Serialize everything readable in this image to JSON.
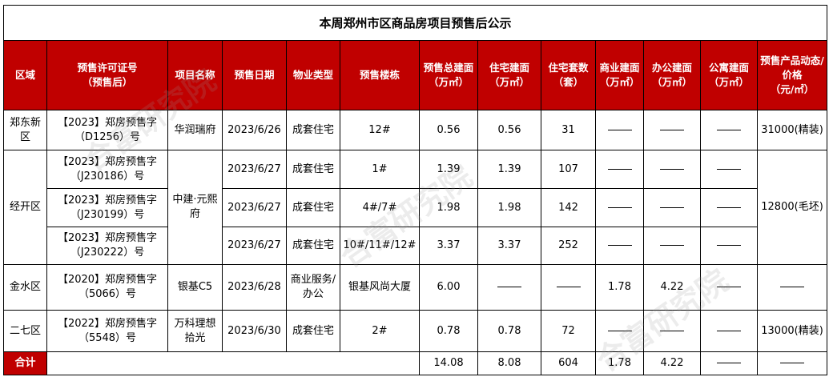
{
  "title": "本周郑州市区商品房项目预售后公示",
  "headers": [
    "区域",
    "预售许可证号\n（预售后）",
    "项目名称",
    "预售日期",
    "物业类型",
    "预售楼栋",
    "预售总建面\n（万㎡）",
    "住宅建面\n（万㎡）",
    "住宅套数\n（套）",
    "商业建面\n（万㎡）",
    "办公建面\n（万㎡）",
    "公寓建面\n（万㎡）",
    "预售产品动态/价格\n（元/㎡）"
  ],
  "rows": [
    {
      "district": "郑东新区",
      "permit": "【2023】郑房预售字（D1256）号",
      "project": "华润瑞府",
      "date": "2023/6/26",
      "type": "成套住宅",
      "building": "12#",
      "total": "0.56",
      "res_area": "0.56",
      "units": "31",
      "com": "—",
      "office": "—",
      "apt": "—",
      "price": "31000(精装)"
    },
    {
      "district": "经开区",
      "permit": "【2023】郑房预售字（J230186）号",
      "project": "中建·元熙府",
      "date": "2023/6/27",
      "type": "成套住宅",
      "building": "1#",
      "total": "1.39",
      "res_area": "1.39",
      "units": "107",
      "com": "—",
      "office": "—",
      "apt": "—",
      "price": "12800(毛坯)"
    },
    {
      "permit": "【2023】郑房预售字（J230199）号",
      "date": "2023/6/27",
      "type": "成套住宅",
      "building": "4#/7#",
      "total": "1.98",
      "res_area": "1.98",
      "units": "142",
      "com": "—",
      "office": "—",
      "apt": "—"
    },
    {
      "permit": "【2023】郑房预售字（J230222）号",
      "date": "2023/6/27",
      "type": "成套住宅",
      "building": "10#/11#/12#",
      "total": "3.37",
      "res_area": "3.37",
      "units": "252",
      "com": "—",
      "office": "—",
      "apt": "—"
    },
    {
      "district": "金水区",
      "permit": "【2020】郑房预售字（5066）号",
      "project": "银基C5",
      "date": "2023/6/28",
      "type": "商业服务/办公",
      "building": "银基风尚大厦",
      "total": "6.00",
      "res_area": "—",
      "units": "—",
      "com": "1.78",
      "office": "4.22",
      "apt": "—",
      "price": "—"
    },
    {
      "district": "二七区",
      "permit": "【2022】郑房预售字（5548）号",
      "project": "万科理想拾光",
      "date": "2023/6/30",
      "type": "成套住宅",
      "building": "2#",
      "total": "0.78",
      "res_area": "0.78",
      "units": "72",
      "com": "—",
      "office": "—",
      "apt": "—",
      "price": "13000(精装)"
    }
  ],
  "total": {
    "label": "合计",
    "total": "14.08",
    "res_area": "8.08",
    "units": "604",
    "com": "1.78",
    "office": "4.22",
    "apt": "—",
    "price": "—"
  },
  "watermark": "合富研究院",
  "colors": {
    "header_bg": "#c00000"
  }
}
